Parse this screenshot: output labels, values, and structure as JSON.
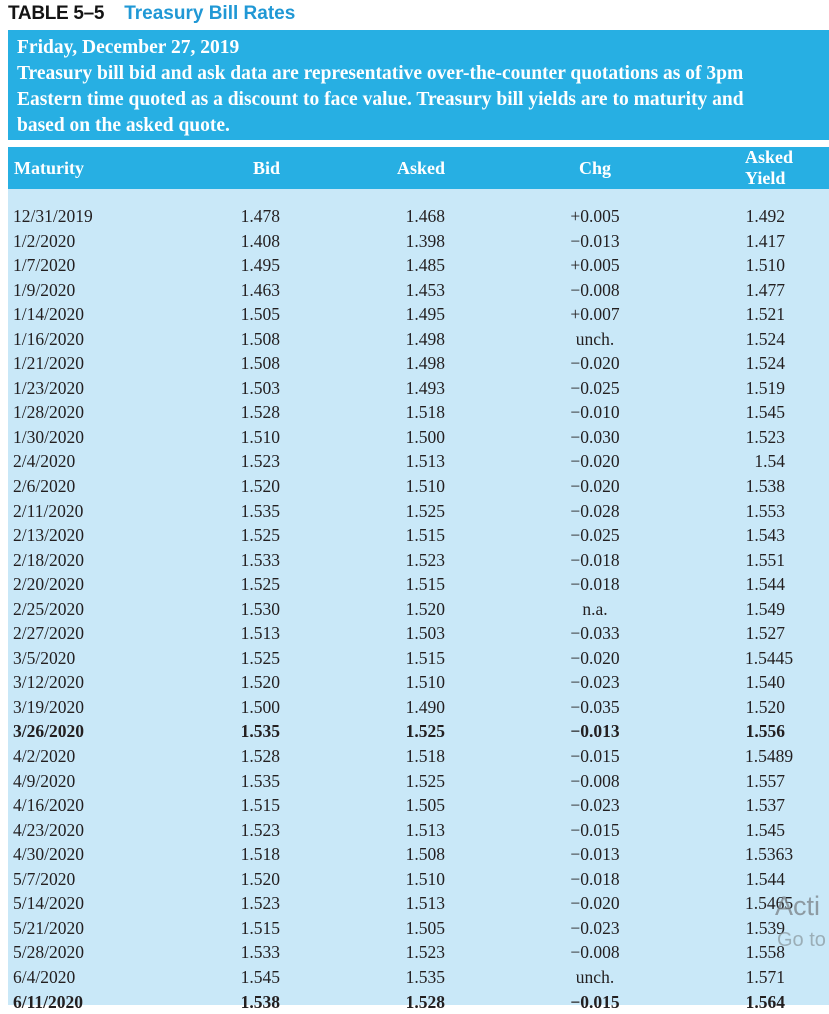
{
  "title": {
    "table_label": "TABLE 5–5",
    "table_title": "Treasury Bill Rates"
  },
  "description": {
    "lines": [
      "Friday, December 27, 2019",
      "Treasury bill bid and ask data are representative over-the-counter quotations as of 3pm",
      "Eastern time quoted as a discount to face value. Treasury bill yields are to maturity and",
      "based on the asked quote."
    ]
  },
  "table": {
    "columns": [
      "Maturity",
      "Bid",
      "Asked",
      "Chg",
      "Asked Yield"
    ],
    "rows": [
      {
        "maturity": "12/31/2019",
        "bid": "1.478",
        "asked": "1.468",
        "chg": "+0.005",
        "asked_yield": "1.492",
        "bold": false
      },
      {
        "maturity": "1/2/2020",
        "bid": "1.408",
        "asked": "1.398",
        "chg": "−0.013",
        "asked_yield": "1.417",
        "bold": false
      },
      {
        "maturity": "1/7/2020",
        "bid": "1.495",
        "asked": "1.485",
        "chg": "+0.005",
        "asked_yield": "1.510",
        "bold": false
      },
      {
        "maturity": "1/9/2020",
        "bid": "1.463",
        "asked": "1.453",
        "chg": "−0.008",
        "asked_yield": "1.477",
        "bold": false
      },
      {
        "maturity": "1/14/2020",
        "bid": "1.505",
        "asked": "1.495",
        "chg": "+0.007",
        "asked_yield": "1.521",
        "bold": false
      },
      {
        "maturity": "1/16/2020",
        "bid": "1.508",
        "asked": "1.498",
        "chg": "unch.",
        "asked_yield": "1.524",
        "bold": false
      },
      {
        "maturity": "1/21/2020",
        "bid": "1.508",
        "asked": "1.498",
        "chg": "−0.020",
        "asked_yield": "1.524",
        "bold": false
      },
      {
        "maturity": "1/23/2020",
        "bid": "1.503",
        "asked": "1.493",
        "chg": "−0.025",
        "asked_yield": "1.519",
        "bold": false
      },
      {
        "maturity": "1/28/2020",
        "bid": "1.528",
        "asked": "1.518",
        "chg": "−0.010",
        "asked_yield": "1.545",
        "bold": false
      },
      {
        "maturity": "1/30/2020",
        "bid": "1.510",
        "asked": "1.500",
        "chg": "−0.030",
        "asked_yield": "1.523",
        "bold": false
      },
      {
        "maturity": "2/4/2020",
        "bid": "1.523",
        "asked": "1.513",
        "chg": "−0.020",
        "asked_yield": "1.54",
        "bold": false
      },
      {
        "maturity": "2/6/2020",
        "bid": "1.520",
        "asked": "1.510",
        "chg": "−0.020",
        "asked_yield": "1.538",
        "bold": false
      },
      {
        "maturity": "2/11/2020",
        "bid": "1.535",
        "asked": "1.525",
        "chg": "−0.028",
        "asked_yield": "1.553",
        "bold": false
      },
      {
        "maturity": "2/13/2020",
        "bid": "1.525",
        "asked": "1.515",
        "chg": "−0.025",
        "asked_yield": "1.543",
        "bold": false
      },
      {
        "maturity": "2/18/2020",
        "bid": "1.533",
        "asked": "1.523",
        "chg": "−0.018",
        "asked_yield": "1.551",
        "bold": false
      },
      {
        "maturity": "2/20/2020",
        "bid": "1.525",
        "asked": "1.515",
        "chg": "−0.018",
        "asked_yield": "1.544",
        "bold": false
      },
      {
        "maturity": "2/25/2020",
        "bid": "1.530",
        "asked": "1.520",
        "chg": "n.a.",
        "asked_yield": "1.549",
        "bold": false
      },
      {
        "maturity": "2/27/2020",
        "bid": "1.513",
        "asked": "1.503",
        "chg": "−0.033",
        "asked_yield": "1.527",
        "bold": false
      },
      {
        "maturity": "3/5/2020",
        "bid": "1.525",
        "asked": "1.515",
        "chg": "−0.020",
        "asked_yield": "1.5445",
        "bold": false
      },
      {
        "maturity": "3/12/2020",
        "bid": "1.520",
        "asked": "1.510",
        "chg": "−0.023",
        "asked_yield": "1.540",
        "bold": false
      },
      {
        "maturity": "3/19/2020",
        "bid": "1.500",
        "asked": "1.490",
        "chg": "−0.035",
        "asked_yield": "1.520",
        "bold": false
      },
      {
        "maturity": "3/26/2020",
        "bid": "1.535",
        "asked": "1.525",
        "chg": "−0.013",
        "asked_yield": "1.556",
        "bold": true
      },
      {
        "maturity": "4/2/2020",
        "bid": "1.528",
        "asked": "1.518",
        "chg": "−0.015",
        "asked_yield": "1.5489",
        "bold": false
      },
      {
        "maturity": "4/9/2020",
        "bid": "1.535",
        "asked": "1.525",
        "chg": "−0.008",
        "asked_yield": "1.557",
        "bold": false
      },
      {
        "maturity": "4/16/2020",
        "bid": "1.515",
        "asked": "1.505",
        "chg": "−0.023",
        "asked_yield": "1.537",
        "bold": false
      },
      {
        "maturity": "4/23/2020",
        "bid": "1.523",
        "asked": "1.513",
        "chg": "−0.015",
        "asked_yield": "1.545",
        "bold": false
      },
      {
        "maturity": "4/30/2020",
        "bid": "1.518",
        "asked": "1.508",
        "chg": "−0.013",
        "asked_yield": "1.5363",
        "bold": false
      },
      {
        "maturity": "5/7/2020",
        "bid": "1.520",
        "asked": "1.510",
        "chg": "−0.018",
        "asked_yield": "1.544",
        "bold": false
      },
      {
        "maturity": "5/14/2020",
        "bid": "1.523",
        "asked": "1.513",
        "chg": "−0.020",
        "asked_yield": "1.5465",
        "bold": false
      },
      {
        "maturity": "5/21/2020",
        "bid": "1.515",
        "asked": "1.505",
        "chg": "−0.023",
        "asked_yield": "1.539",
        "bold": false
      },
      {
        "maturity": "5/28/2020",
        "bid": "1.533",
        "asked": "1.523",
        "chg": "−0.008",
        "asked_yield": "1.558",
        "bold": false
      },
      {
        "maturity": "6/4/2020",
        "bid": "1.545",
        "asked": "1.535",
        "chg": "unch.",
        "asked_yield": "1.571",
        "bold": false
      },
      {
        "maturity": "6/11/2020",
        "bid": "1.538",
        "asked": "1.528",
        "chg": "−0.015",
        "asked_yield": "1.564",
        "bold": true
      }
    ]
  },
  "watermark": {
    "line1": "Acti",
    "line2": "Go to"
  },
  "colors": {
    "accent": "#27AFE3",
    "body-blue": "#C9E8F8",
    "title-blue": "#2098D5",
    "ink": "#231F20",
    "wm-gray": "#9BA0A4"
  }
}
